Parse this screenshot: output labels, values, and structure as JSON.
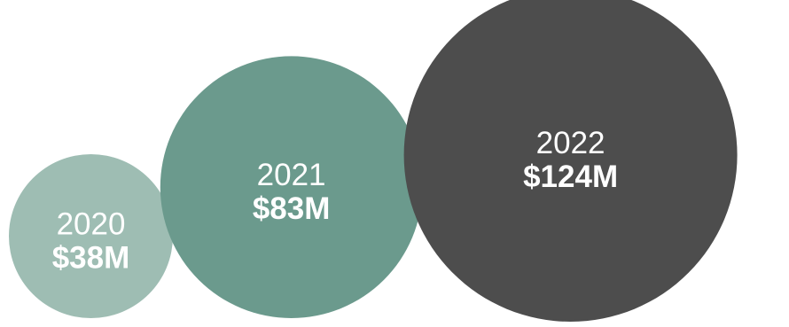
{
  "chart_data": {
    "type": "bubble",
    "title": "",
    "legend": "none",
    "grid": false,
    "categories": [
      "2020",
      "2021",
      "2022"
    ],
    "values": [
      38,
      83,
      124
    ],
    "value_labels": [
      "$38M",
      "$83M",
      "$124M"
    ],
    "unit": "$M",
    "colors": [
      "#9ebdb3",
      "#6b9a8d",
      "#4d4d4d"
    ]
  }
}
